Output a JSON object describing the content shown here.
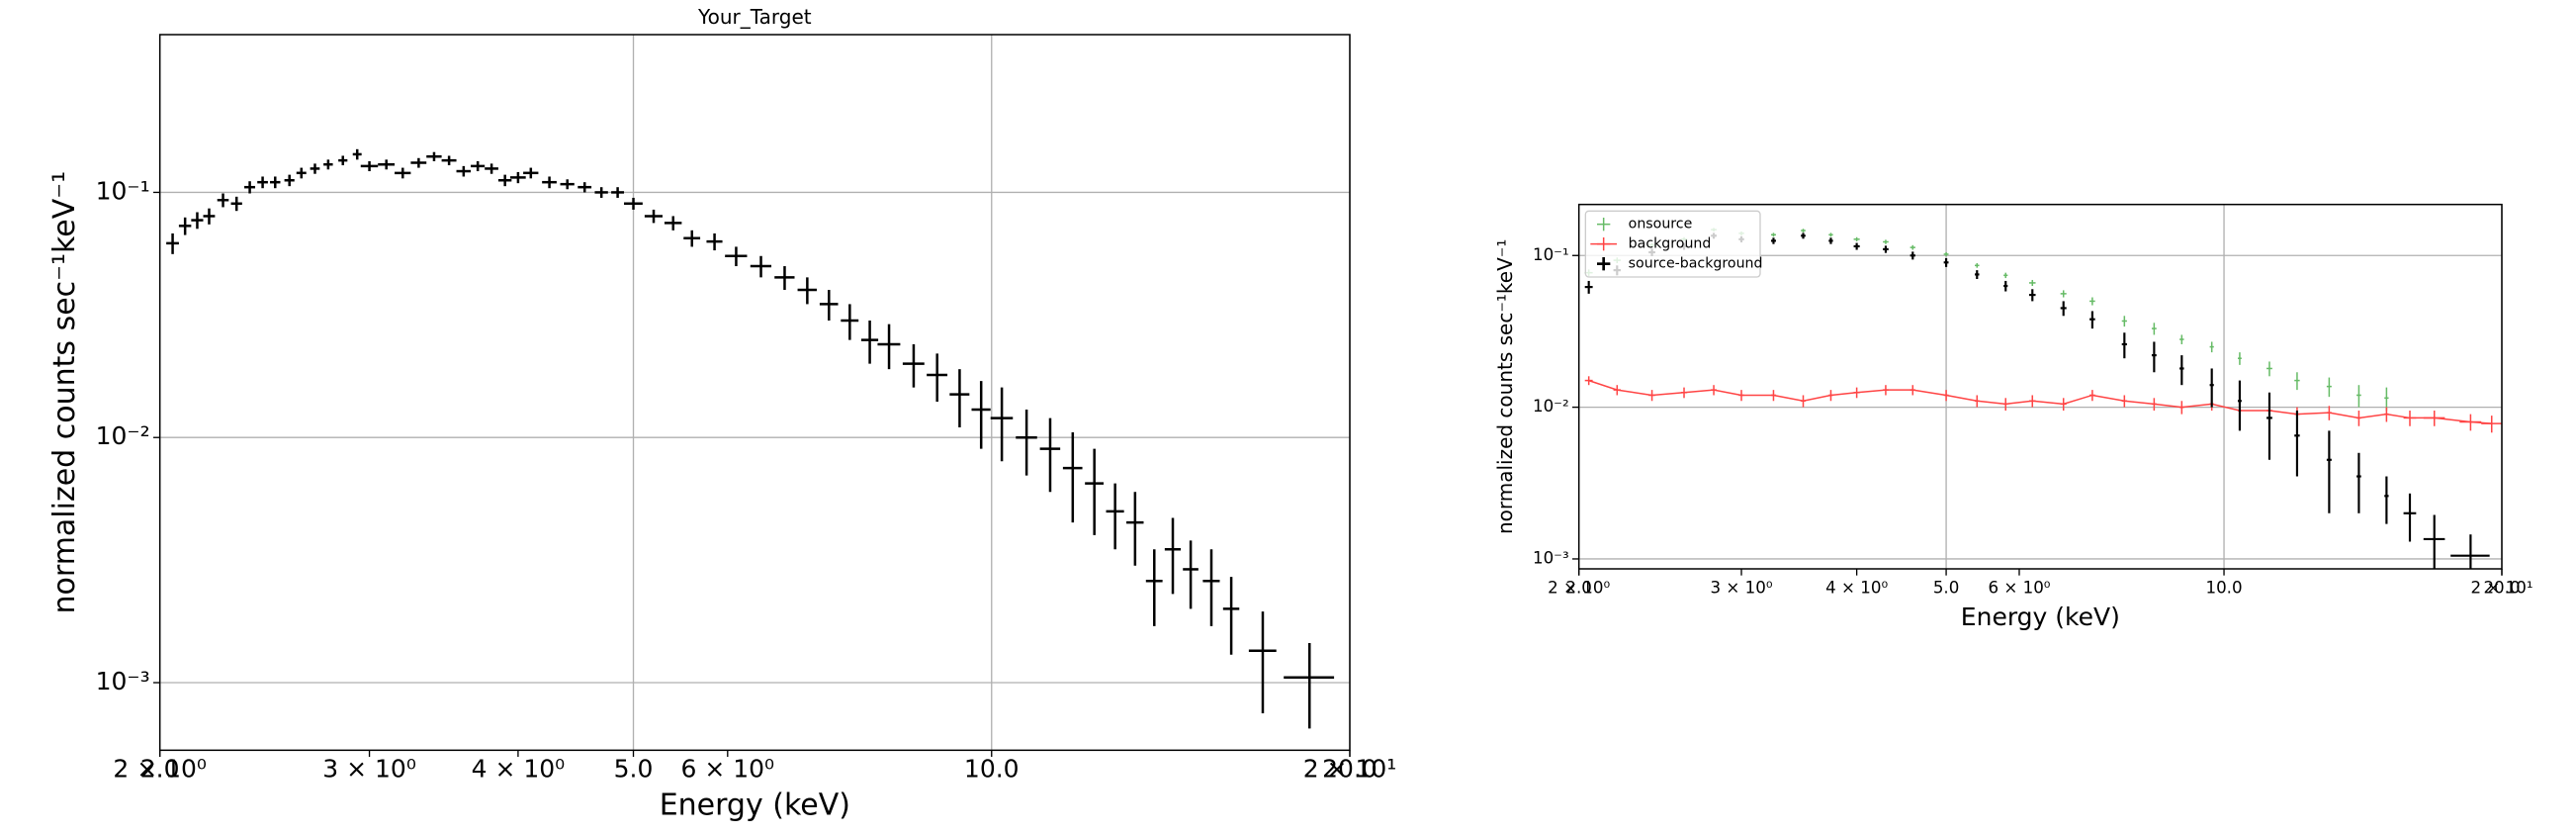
{
  "chart_data": [
    {
      "type": "errorbar",
      "title": "Your_Target",
      "xlabel": "Energy (keV)",
      "ylabel": "normalized counts sec⁻¹keV⁻¹",
      "xscale": "log",
      "yscale": "log",
      "xlim": [
        2,
        20
      ],
      "ylim": [
        0.00053,
        0.44
      ],
      "grid": true,
      "color": "#000000",
      "xticks": [
        {
          "value": 2,
          "label": "2.0"
        },
        {
          "value": 5,
          "label": "5.0"
        },
        {
          "value": 10,
          "label": "10.0"
        },
        {
          "value": 20,
          "label": "20.0"
        }
      ],
      "xminorticks": [
        {
          "value": 2,
          "label": "2 × 10⁰"
        },
        {
          "value": 3,
          "label": "3 × 10⁰"
        },
        {
          "value": 4,
          "label": "4 × 10⁰"
        },
        {
          "value": 6,
          "label": "6 × 10⁰"
        },
        {
          "value": 20,
          "label": "2 × 10¹"
        }
      ],
      "yticks": [
        {
          "value": 0.001,
          "label": "10⁻³"
        },
        {
          "value": 0.01,
          "label": "10⁻²"
        },
        {
          "value": 0.1,
          "label": "10⁻¹"
        }
      ],
      "x": [
        2.05,
        2.1,
        2.15,
        2.2,
        2.26,
        2.32,
        2.38,
        2.44,
        2.5,
        2.57,
        2.63,
        2.7,
        2.77,
        2.85,
        2.93,
        3.0,
        3.1,
        3.2,
        3.3,
        3.4,
        3.5,
        3.6,
        3.7,
        3.8,
        3.9,
        4.0,
        4.1,
        4.25,
        4.4,
        4.55,
        4.7,
        4.85,
        5.0,
        5.2,
        5.4,
        5.6,
        5.85,
        6.1,
        6.4,
        6.7,
        7.0,
        7.3,
        7.6,
        7.9,
        8.2,
        8.6,
        9.0,
        9.4,
        9.8,
        10.2,
        10.7,
        11.2,
        11.7,
        12.2,
        12.7,
        13.2,
        13.7,
        14.2,
        14.7,
        15.3,
        15.9,
        16.9,
        18.5
      ],
      "values": [
        0.062,
        0.073,
        0.077,
        0.08,
        0.093,
        0.09,
        0.105,
        0.11,
        0.11,
        0.112,
        0.12,
        0.125,
        0.13,
        0.135,
        0.143,
        0.128,
        0.13,
        0.12,
        0.132,
        0.14,
        0.135,
        0.122,
        0.128,
        0.125,
        0.112,
        0.115,
        0.12,
        0.11,
        0.108,
        0.105,
        0.1,
        0.1,
        0.09,
        0.08,
        0.075,
        0.065,
        0.063,
        0.055,
        0.05,
        0.045,
        0.04,
        0.035,
        0.03,
        0.025,
        0.024,
        0.02,
        0.018,
        0.015,
        0.013,
        0.012,
        0.01,
        0.009,
        0.0075,
        0.0065,
        0.005,
        0.0045,
        0.0026,
        0.0035,
        0.0029,
        0.0026,
        0.002,
        0.00135,
        0.00105
      ],
      "yerr": [
        0.006,
        0.006,
        0.006,
        0.006,
        0.006,
        0.006,
        0.006,
        0.006,
        0.006,
        0.006,
        0.006,
        0.006,
        0.006,
        0.006,
        0.007,
        0.006,
        0.006,
        0.006,
        0.006,
        0.006,
        0.006,
        0.006,
        0.006,
        0.006,
        0.006,
        0.006,
        0.006,
        0.006,
        0.005,
        0.005,
        0.005,
        0.005,
        0.005,
        0.005,
        0.005,
        0.005,
        0.005,
        0.005,
        0.005,
        0.005,
        0.005,
        0.005,
        0.005,
        0.005,
        0.005,
        0.004,
        0.004,
        0.004,
        0.004,
        0.004,
        0.003,
        0.003,
        0.003,
        0.0025,
        0.0015,
        0.0015,
        0.0009,
        0.0012,
        0.0009,
        0.0009,
        0.0007,
        0.0006,
        0.0004
      ],
      "xerr": [
        0.025,
        0.025,
        0.025,
        0.025,
        0.025,
        0.025,
        0.025,
        0.025,
        0.025,
        0.025,
        0.025,
        0.025,
        0.025,
        0.025,
        0.025,
        0.05,
        0.05,
        0.05,
        0.05,
        0.05,
        0.05,
        0.05,
        0.05,
        0.05,
        0.05,
        0.06,
        0.06,
        0.06,
        0.06,
        0.06,
        0.06,
        0.06,
        0.09,
        0.09,
        0.09,
        0.09,
        0.09,
        0.13,
        0.13,
        0.13,
        0.13,
        0.13,
        0.13,
        0.13,
        0.18,
        0.18,
        0.18,
        0.18,
        0.18,
        0.22,
        0.22,
        0.22,
        0.22,
        0.22,
        0.22,
        0.22,
        0.22,
        0.22,
        0.22,
        0.25,
        0.25,
        0.45,
        0.9
      ]
    },
    {
      "type": "errorbar",
      "xlabel": "Energy (keV)",
      "ylabel": "normalized counts sec⁻¹keV⁻¹",
      "xscale": "log",
      "yscale": "log",
      "xlim": [
        2,
        20
      ],
      "ylim": [
        0.00086,
        0.217
      ],
      "grid": true,
      "legend": "upper left",
      "xticks": [
        {
          "value": 2,
          "label": "2.0"
        },
        {
          "value": 5,
          "label": "5.0"
        },
        {
          "value": 10,
          "label": "10.0"
        },
        {
          "value": 20,
          "label": "20.0"
        }
      ],
      "xminorticks": [
        {
          "value": 2,
          "label": "2 × 10⁰"
        },
        {
          "value": 3,
          "label": "3 × 10⁰"
        },
        {
          "value": 4,
          "label": "4 × 10⁰"
        },
        {
          "value": 6,
          "label": "6 × 10⁰"
        },
        {
          "value": 20,
          "label": "2 × 10¹"
        }
      ],
      "yticks": [
        {
          "value": 0.001,
          "label": "10⁻³"
        },
        {
          "value": 0.01,
          "label": "10⁻²"
        },
        {
          "value": 0.1,
          "label": "10⁻¹"
        }
      ],
      "series": [
        {
          "name": "onsource",
          "color": "#66bb66",
          "x": [
            2.05,
            2.2,
            2.4,
            2.6,
            2.8,
            3.0,
            3.25,
            3.5,
            3.75,
            4.0,
            4.3,
            4.6,
            5.0,
            5.4,
            5.8,
            6.2,
            6.7,
            7.2,
            7.8,
            8.4,
            9.0,
            9.7,
            10.4,
            11.2,
            12.0,
            13.0,
            14.0,
            15.0
          ],
          "values": [
            0.077,
            0.093,
            0.117,
            0.128,
            0.148,
            0.14,
            0.137,
            0.146,
            0.137,
            0.128,
            0.123,
            0.113,
            0.102,
            0.086,
            0.074,
            0.066,
            0.056,
            0.05,
            0.037,
            0.033,
            0.028,
            0.025,
            0.021,
            0.018,
            0.015,
            0.0137,
            0.012,
            0.0115
          ],
          "yerr": [
            0.004,
            0.004,
            0.004,
            0.004,
            0.004,
            0.004,
            0.004,
            0.004,
            0.004,
            0.004,
            0.004,
            0.004,
            0.003,
            0.003,
            0.003,
            0.003,
            0.003,
            0.003,
            0.003,
            0.003,
            0.002,
            0.002,
            0.002,
            0.002,
            0.002,
            0.002,
            0.002,
            0.002
          ],
          "xerr": [
            0.02,
            0.02,
            0.02,
            0.02,
            0.02,
            0.02,
            0.02,
            0.02,
            0.02,
            0.03,
            0.03,
            0.03,
            0.03,
            0.03,
            0.03,
            0.05,
            0.05,
            0.05,
            0.05,
            0.05,
            0.05,
            0.05,
            0.05,
            0.08,
            0.08,
            0.08,
            0.08,
            0.08
          ]
        },
        {
          "name": "background",
          "color": "#ff4444",
          "linestyle": "-",
          "x": [
            2.05,
            2.2,
            2.4,
            2.6,
            2.8,
            3.0,
            3.25,
            3.5,
            3.75,
            4.0,
            4.3,
            4.6,
            5.0,
            5.4,
            5.8,
            6.2,
            6.7,
            7.2,
            7.8,
            8.4,
            9.0,
            9.7,
            10.4,
            11.2,
            12.0,
            13.0,
            14.0,
            15.0,
            15.9,
            16.9,
            18.5,
            19.5
          ],
          "values": [
            0.015,
            0.013,
            0.012,
            0.0125,
            0.013,
            0.012,
            0.012,
            0.011,
            0.012,
            0.0125,
            0.013,
            0.013,
            0.012,
            0.011,
            0.0105,
            0.011,
            0.0105,
            0.012,
            0.011,
            0.0105,
            0.01,
            0.0105,
            0.0095,
            0.0095,
            0.009,
            0.0092,
            0.0085,
            0.009,
            0.0085,
            0.0085,
            0.008,
            0.0078
          ],
          "yerr": [
            0.001,
            0.001,
            0.001,
            0.001,
            0.001,
            0.001,
            0.001,
            0.001,
            0.001,
            0.001,
            0.001,
            0.001,
            0.001,
            0.001,
            0.001,
            0.001,
            0.001,
            0.001,
            0.001,
            0.001,
            0.001,
            0.001,
            0.001,
            0.001,
            0.001,
            0.001,
            0.001,
            0.001,
            0.001,
            0.001,
            0.001,
            0.001
          ],
          "xerr": [
            0.02,
            0.02,
            0.02,
            0.02,
            0.02,
            0.02,
            0.02,
            0.02,
            0.02,
            0.03,
            0.03,
            0.03,
            0.03,
            0.03,
            0.03,
            0.05,
            0.05,
            0.05,
            0.05,
            0.05,
            0.05,
            0.05,
            0.05,
            0.08,
            0.08,
            0.08,
            0.08,
            0.08,
            0.25,
            0.45,
            0.5,
            0.5
          ]
        },
        {
          "name": "source-background",
          "color": "#000000",
          "x": [
            2.05,
            2.2,
            2.4,
            2.6,
            2.8,
            3.0,
            3.25,
            3.5,
            3.75,
            4.0,
            4.3,
            4.6,
            5.0,
            5.4,
            5.8,
            6.2,
            6.7,
            7.2,
            7.8,
            8.4,
            9.0,
            9.7,
            10.4,
            11.2,
            12.0,
            13.0,
            14.0,
            15.0,
            15.9,
            16.9,
            18.5
          ],
          "values": [
            0.062,
            0.08,
            0.105,
            0.115,
            0.135,
            0.128,
            0.125,
            0.135,
            0.125,
            0.115,
            0.11,
            0.1,
            0.09,
            0.075,
            0.063,
            0.055,
            0.045,
            0.038,
            0.026,
            0.022,
            0.018,
            0.014,
            0.011,
            0.0085,
            0.0065,
            0.0045,
            0.0035,
            0.0026,
            0.002,
            0.00135,
            0.00105
          ],
          "yerr": [
            0.006,
            0.006,
            0.006,
            0.006,
            0.006,
            0.006,
            0.006,
            0.006,
            0.006,
            0.006,
            0.006,
            0.006,
            0.006,
            0.005,
            0.005,
            0.005,
            0.005,
            0.005,
            0.005,
            0.005,
            0.004,
            0.004,
            0.004,
            0.004,
            0.003,
            0.0025,
            0.0015,
            0.0009,
            0.0007,
            0.0006,
            0.0004
          ],
          "xerr": [
            0.02,
            0.02,
            0.02,
            0.02,
            0.02,
            0.02,
            0.02,
            0.02,
            0.02,
            0.03,
            0.03,
            0.03,
            0.03,
            0.03,
            0.03,
            0.05,
            0.05,
            0.05,
            0.05,
            0.05,
            0.05,
            0.05,
            0.05,
            0.08,
            0.08,
            0.08,
            0.08,
            0.08,
            0.25,
            0.45,
            0.9
          ]
        }
      ]
    }
  ]
}
